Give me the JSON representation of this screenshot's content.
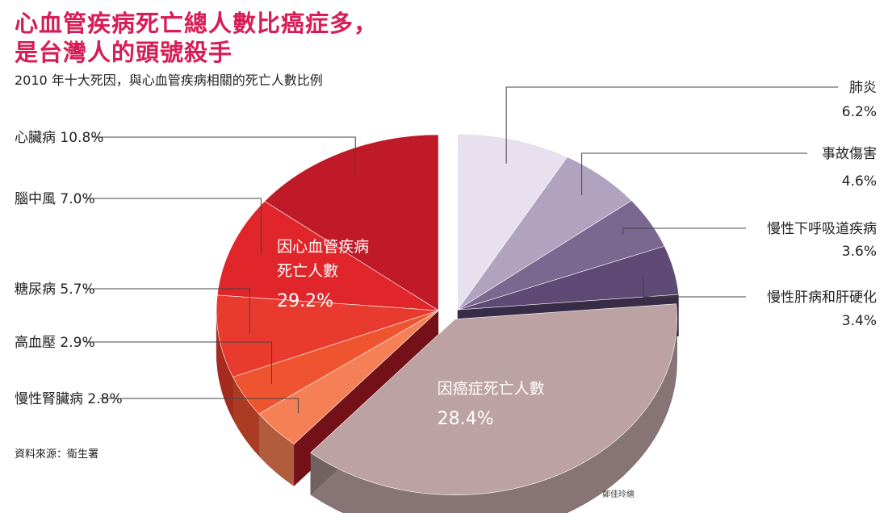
{
  "title_line1": "心血管疾病死亡總人數比癌症多，",
  "title_line2": "是台灣人的頭號殺手",
  "subtitle": "2010 年十大死因，與心血管疾病相關的死亡人數比例",
  "source": "資料來源：衛生署",
  "credit": "鄭佳玲繪",
  "chart_data": {
    "type": "pie",
    "title": "2010 年十大死因，與心血管疾病相關的死亡人數比例",
    "unit": "%",
    "slices": [
      {
        "label": "心臟病",
        "value": 10.8,
        "text": "心臟病 10.8%",
        "color": "#c01a28",
        "group": "cardiovascular"
      },
      {
        "label": "腦中風",
        "value": 7.0,
        "text": "腦中風 7.0%",
        "color": "#e0262b",
        "group": "cardiovascular"
      },
      {
        "label": "糖尿病",
        "value": 5.7,
        "text": "糖尿病 5.7%",
        "color": "#e83a2e",
        "group": "cardiovascular"
      },
      {
        "label": "高血壓",
        "value": 2.9,
        "text": "高血壓 2.9%",
        "color": "#ee5430",
        "group": "cardiovascular"
      },
      {
        "label": "慢性腎臟病",
        "value": 2.8,
        "text": "慢性腎臟病 2.8%",
        "color": "#f58055",
        "group": "cardiovascular"
      },
      {
        "label": "癌症",
        "value": 28.4,
        "color": "#bca2a2",
        "group": "cancer"
      },
      {
        "label": "慢性肝病和肝硬化",
        "value": 3.4,
        "value_text": "3.4%",
        "color": "#5e4a75",
        "group": "other"
      },
      {
        "label": "慢性下呼吸道疾病",
        "value": 3.6,
        "value_text": "3.6%",
        "color": "#7b6890",
        "group": "other"
      },
      {
        "label": "事故傷害",
        "value": 4.6,
        "value_text": "4.6%",
        "color": "#b1a3bf",
        "group": "other"
      },
      {
        "label": "肺炎",
        "value": 6.2,
        "value_text": "6.2%",
        "color": "#e8e0ef",
        "group": "other"
      }
    ],
    "callouts": [
      {
        "line1": "因心血管疾病",
        "line2": "死亡人數",
        "value": "29.2%"
      },
      {
        "line1": "因癌症死亡人數",
        "value": "28.4%"
      }
    ]
  }
}
